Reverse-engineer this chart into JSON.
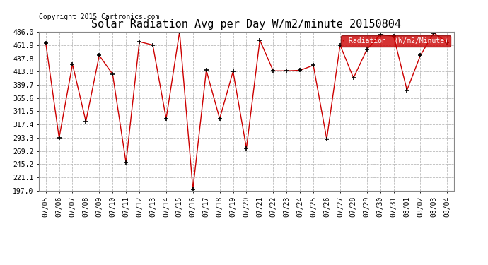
{
  "title": "Solar Radiation Avg per Day W/m2/minute 20150804",
  "copyright": "Copyright 2015 Cartronics.com",
  "legend_label": "Radiation  (W/m2/Minute)",
  "legend_bg": "#cc0000",
  "legend_text_color": "#ffffff",
  "line_color": "#cc0000",
  "marker": "+",
  "marker_color": "#000000",
  "bg_color": "#ffffff",
  "grid_color": "#bbbbbb",
  "dates": [
    "07/05",
    "07/06",
    "07/07",
    "07/08",
    "07/09",
    "07/10",
    "07/11",
    "07/12",
    "07/13",
    "07/14",
    "07/15",
    "07/16",
    "07/17",
    "07/18",
    "07/19",
    "07/20",
    "07/21",
    "07/22",
    "07/23",
    "07/24",
    "07/25",
    "07/26",
    "07/27",
    "07/28",
    "07/29",
    "07/30",
    "07/31",
    "08/01",
    "08/02",
    "08/03",
    "08/04"
  ],
  "values": [
    466,
    293,
    427,
    323,
    443,
    409,
    248,
    468,
    462,
    328,
    486,
    200,
    416,
    328,
    414,
    274,
    471,
    415,
    415,
    416,
    425,
    291,
    462,
    402,
    454,
    481,
    478,
    380,
    443,
    484,
    467
  ],
  "ylim": [
    197.0,
    486.0
  ],
  "yticks": [
    197.0,
    221.1,
    245.2,
    269.2,
    293.3,
    317.4,
    341.5,
    365.6,
    389.7,
    413.8,
    437.8,
    461.9,
    486.0
  ],
  "title_fontsize": 11,
  "tick_fontsize": 7,
  "copyright_fontsize": 7
}
